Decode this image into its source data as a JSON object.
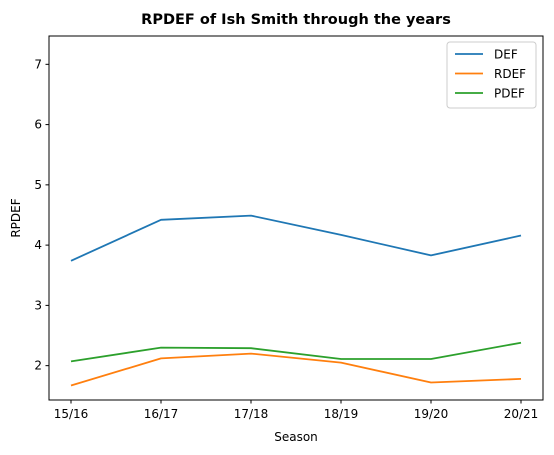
{
  "chart_data": {
    "type": "line",
    "title": "RPDEF of Ish Smith through the years",
    "xlabel": "Season",
    "ylabel": "RPDEF",
    "categories": [
      "15/16",
      "16/17",
      "17/18",
      "18/19",
      "19/20",
      "20/21"
    ],
    "yticks": [
      2,
      3,
      4,
      5,
      6,
      7
    ],
    "ylim": [
      1.43,
      7.47
    ],
    "grid": false,
    "legend_position": "top-right",
    "series": [
      {
        "name": "DEF",
        "color": "#1f77b4",
        "values": [
          3.74,
          4.42,
          4.49,
          4.17,
          3.83,
          4.16
        ]
      },
      {
        "name": "RDEF",
        "color": "#ff7f0e",
        "values": [
          1.67,
          2.12,
          2.2,
          2.05,
          1.72,
          1.78
        ]
      },
      {
        "name": "PDEF",
        "color": "#2ca02c",
        "values": [
          2.07,
          2.3,
          2.29,
          2.11,
          2.11,
          2.38
        ]
      }
    ]
  }
}
